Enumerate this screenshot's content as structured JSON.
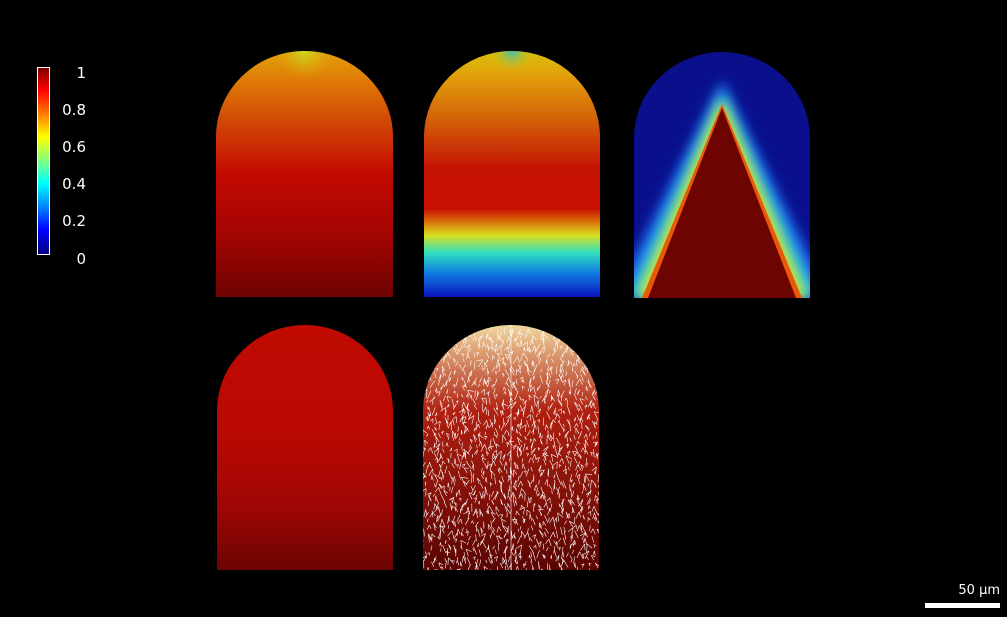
{
  "colorbar": {
    "ticks": [
      "1",
      "0.8",
      "0.6",
      "0.4",
      "0.2",
      "0"
    ],
    "colors": [
      "#800000",
      "#ff0000",
      "#ff8000",
      "#ffff00",
      "#80ff80",
      "#00ffff",
      "#0080ff",
      "#0000ff",
      "#000080"
    ]
  },
  "panels": [
    {
      "name": "panel-top-left",
      "pattern": "gradient-red-orange"
    },
    {
      "name": "panel-top-middle",
      "pattern": "gradient-orange-red-blue"
    },
    {
      "name": "panel-top-right",
      "pattern": "triangle-red-on-blue"
    },
    {
      "name": "panel-bottom-left",
      "pattern": "gradient-red"
    },
    {
      "name": "panel-bottom-middle",
      "pattern": "mesh-white-on-red"
    }
  ],
  "scalebar": {
    "label": "50 µm"
  }
}
